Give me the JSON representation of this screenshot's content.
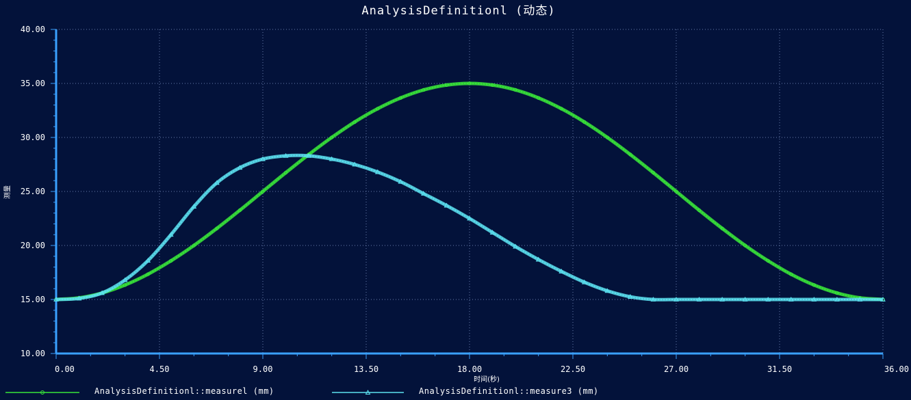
{
  "chart_data": {
    "type": "line",
    "title": "AnalysisDefinitionl (动态)",
    "xlabel": "时间(秒)",
    "ylabel": "测量",
    "xlim": [
      0,
      36
    ],
    "ylim": [
      10,
      40
    ],
    "x_ticks": [
      "0.00",
      "4.50",
      "9.00",
      "13.50",
      "18.00",
      "22.50",
      "27.00",
      "31.50",
      "36.00"
    ],
    "y_ticks": [
      "10.00",
      "15.00",
      "20.00",
      "25.00",
      "30.00",
      "35.00",
      "40.00"
    ],
    "grid": true,
    "legend_position": "bottom",
    "background_color": "#03123a",
    "axis_color": "#3aa0ff",
    "grid_color": "#6a7fae",
    "series": [
      {
        "name": "AnalysisDefinitionl::measurel (mm)",
        "color": "#39e639",
        "marker": "circle",
        "x": [
          0,
          1,
          2,
          3,
          4,
          5,
          6,
          7,
          8,
          9,
          10,
          11,
          12,
          13,
          14,
          15,
          16,
          17,
          18,
          19,
          20,
          21,
          22,
          23,
          24,
          25,
          26,
          27,
          28,
          29,
          30,
          31,
          32,
          33,
          34,
          35,
          36
        ],
        "y": [
          15.0,
          15.15,
          15.6,
          16.34,
          17.34,
          18.58,
          20.0,
          21.58,
          23.26,
          25.0,
          26.74,
          28.42,
          30.0,
          31.43,
          32.66,
          33.66,
          34.4,
          34.85,
          35.0,
          34.85,
          34.4,
          33.66,
          32.66,
          31.43,
          30.0,
          28.42,
          26.74,
          25.0,
          23.26,
          21.58,
          20.0,
          18.58,
          17.34,
          16.34,
          15.6,
          15.15,
          15.0
        ]
      },
      {
        "name": "AnalysisDefinitionl::measure3 (mm)",
        "color": "#5ce1f0",
        "marker": "triangle",
        "x": [
          0,
          1,
          2,
          3,
          4,
          5,
          6,
          7,
          8,
          9,
          10,
          11,
          12,
          13,
          14,
          15,
          16,
          17,
          18,
          19,
          20,
          21,
          22,
          23,
          24,
          25,
          26,
          27,
          28,
          29,
          30,
          31,
          32,
          33,
          34,
          35,
          36
        ],
        "y": [
          15.0,
          15.1,
          15.6,
          16.8,
          18.6,
          21.0,
          23.6,
          25.8,
          27.2,
          28.0,
          28.3,
          28.3,
          28.0,
          27.5,
          26.8,
          25.9,
          24.8,
          23.7,
          22.5,
          21.2,
          19.9,
          18.7,
          17.6,
          16.6,
          15.8,
          15.25,
          15.0,
          15.0,
          15.0,
          15.0,
          15.0,
          15.0,
          15.0,
          15.0,
          15.0,
          15.0,
          15.0
        ]
      }
    ]
  }
}
